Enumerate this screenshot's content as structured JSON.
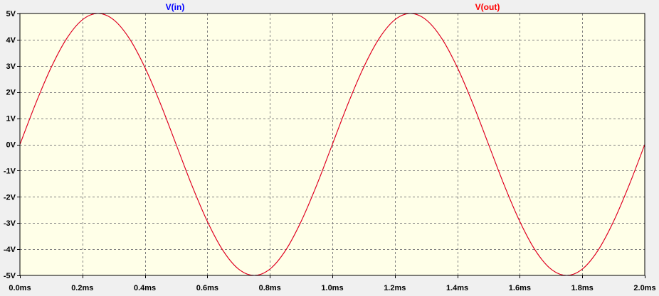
{
  "chart_data": {
    "type": "line",
    "xlabel": "",
    "ylabel": "",
    "xlim": [
      0,
      2.0
    ],
    "ylim": [
      -5,
      5
    ],
    "x_ticks": [
      0.0,
      0.2,
      0.4,
      0.6,
      0.8,
      1.0,
      1.2,
      1.4,
      1.6,
      1.8,
      2.0
    ],
    "x_tick_labels": [
      "0.0ms",
      "0.2ms",
      "0.4ms",
      "0.6ms",
      "0.8ms",
      "1.0ms",
      "1.2ms",
      "1.4ms",
      "1.6ms",
      "1.8ms",
      "2.0ms"
    ],
    "y_ticks": [
      5,
      4,
      3,
      2,
      1,
      0,
      -1,
      -2,
      -3,
      -4,
      -5
    ],
    "y_tick_labels": [
      "5V",
      "4V",
      "3V",
      "2V",
      "1V",
      "0V",
      "-1V",
      "-2V",
      "-3V",
      "-4V",
      "-5V"
    ],
    "grid": true,
    "background_color": "#ffffe8",
    "grid_color": "#808080",
    "x_unit": "ms",
    "y_unit": "V",
    "series": [
      {
        "name": "V(in)",
        "color": "#0000ff",
        "x": [
          0.0,
          0.05,
          0.1,
          0.15,
          0.2,
          0.25,
          0.3,
          0.35,
          0.4,
          0.45,
          0.5,
          0.55,
          0.6,
          0.65,
          0.7,
          0.75,
          0.8,
          0.85,
          0.9,
          0.95,
          1.0,
          1.05,
          1.1,
          1.15,
          1.2,
          1.25,
          1.3,
          1.35,
          1.4,
          1.45,
          1.5,
          1.55,
          1.6,
          1.65,
          1.7,
          1.75,
          1.8,
          1.85,
          1.9,
          1.95,
          2.0
        ],
        "y": [
          0.0,
          1.55,
          2.94,
          4.05,
          4.76,
          5.0,
          4.76,
          4.05,
          2.94,
          1.55,
          0.0,
          -1.55,
          -2.94,
          -4.05,
          -4.76,
          -5.0,
          -4.76,
          -4.05,
          -2.94,
          -1.55,
          0.0,
          1.55,
          2.94,
          4.05,
          4.76,
          5.0,
          4.76,
          4.05,
          2.94,
          1.55,
          0.0,
          -1.55,
          -2.94,
          -4.05,
          -4.76,
          -5.0,
          -4.76,
          -4.05,
          -2.94,
          -1.55,
          0.0
        ]
      },
      {
        "name": "V(out)",
        "color": "#ff0000",
        "x": [
          0.0,
          0.05,
          0.1,
          0.15,
          0.2,
          0.25,
          0.3,
          0.35,
          0.4,
          0.45,
          0.5,
          0.55,
          0.6,
          0.65,
          0.7,
          0.75,
          0.8,
          0.85,
          0.9,
          0.95,
          1.0,
          1.05,
          1.1,
          1.15,
          1.2,
          1.25,
          1.3,
          1.35,
          1.4,
          1.45,
          1.5,
          1.55,
          1.6,
          1.65,
          1.7,
          1.75,
          1.8,
          1.85,
          1.9,
          1.95,
          2.0
        ],
        "y": [
          0.0,
          1.55,
          2.94,
          4.05,
          4.76,
          5.0,
          4.76,
          4.05,
          2.94,
          1.55,
          0.0,
          -1.55,
          -2.94,
          -4.05,
          -4.76,
          -5.0,
          -4.76,
          -4.05,
          -2.94,
          -1.55,
          0.0,
          1.55,
          2.94,
          4.05,
          4.76,
          5.0,
          4.76,
          4.05,
          2.94,
          1.55,
          0.0,
          -1.55,
          -2.94,
          -4.05,
          -4.76,
          -5.0,
          -4.76,
          -4.05,
          -2.94,
          -1.55,
          0.0
        ]
      }
    ]
  }
}
